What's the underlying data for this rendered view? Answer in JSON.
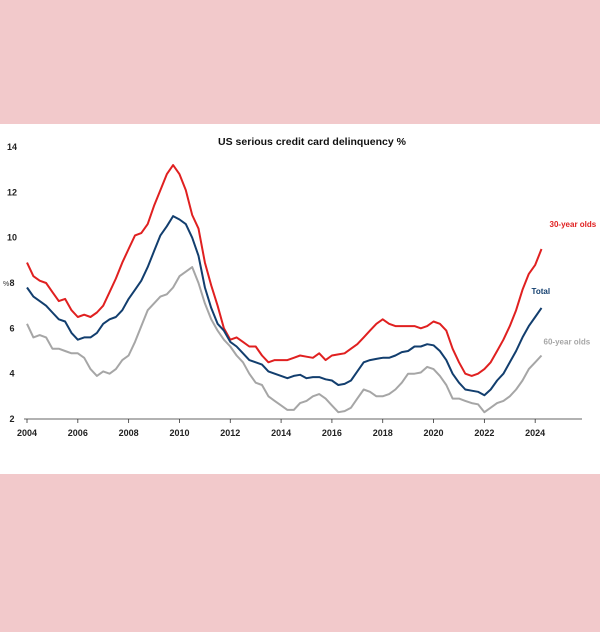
{
  "chart_data": {
    "type": "line",
    "title": "US serious credit card delinquency %",
    "ylabel": "%",
    "xlabel": "",
    "xlim": [
      2004,
      2026
    ],
    "ylim": [
      2,
      14
    ],
    "x_ticks": [
      2004,
      2006,
      2008,
      2010,
      2012,
      2014,
      2016,
      2018,
      2020,
      2022,
      2024
    ],
    "y_ticks": [
      2,
      4,
      6,
      8,
      10,
      12,
      14
    ],
    "grid": false,
    "legend": "direct labels at line ends",
    "series": [
      {
        "name": "30-year olds",
        "color": "#e02020",
        "points": [
          [
            2004.0,
            8.9
          ],
          [
            2004.25,
            8.3
          ],
          [
            2004.5,
            8.1
          ],
          [
            2004.75,
            8.0
          ],
          [
            2005.0,
            7.6
          ],
          [
            2005.25,
            7.2
          ],
          [
            2005.5,
            7.3
          ],
          [
            2005.75,
            6.8
          ],
          [
            2006.0,
            6.5
          ],
          [
            2006.25,
            6.6
          ],
          [
            2006.5,
            6.5
          ],
          [
            2006.75,
            6.7
          ],
          [
            2007.0,
            7.0
          ],
          [
            2007.25,
            7.6
          ],
          [
            2007.5,
            8.2
          ],
          [
            2007.75,
            8.9
          ],
          [
            2008.0,
            9.5
          ],
          [
            2008.25,
            10.1
          ],
          [
            2008.5,
            10.2
          ],
          [
            2008.75,
            10.6
          ],
          [
            2009.0,
            11.4
          ],
          [
            2009.25,
            12.1
          ],
          [
            2009.5,
            12.8
          ],
          [
            2009.75,
            13.2
          ],
          [
            2010.0,
            12.8
          ],
          [
            2010.25,
            12.1
          ],
          [
            2010.5,
            11.0
          ],
          [
            2010.75,
            10.4
          ],
          [
            2011.0,
            8.9
          ],
          [
            2011.25,
            7.9
          ],
          [
            2011.5,
            7.0
          ],
          [
            2011.75,
            6.0
          ],
          [
            2012.0,
            5.5
          ],
          [
            2012.25,
            5.6
          ],
          [
            2012.5,
            5.4
          ],
          [
            2012.75,
            5.2
          ],
          [
            2013.0,
            5.2
          ],
          [
            2013.25,
            4.8
          ],
          [
            2013.5,
            4.5
          ],
          [
            2013.75,
            4.6
          ],
          [
            2014.0,
            4.6
          ],
          [
            2014.25,
            4.6
          ],
          [
            2014.5,
            4.7
          ],
          [
            2014.75,
            4.8
          ],
          [
            2015.0,
            4.75
          ],
          [
            2015.25,
            4.7
          ],
          [
            2015.5,
            4.9
          ],
          [
            2015.75,
            4.6
          ],
          [
            2016.0,
            4.8
          ],
          [
            2016.25,
            4.85
          ],
          [
            2016.5,
            4.9
          ],
          [
            2016.75,
            5.1
          ],
          [
            2017.0,
            5.3
          ],
          [
            2017.25,
            5.6
          ],
          [
            2017.5,
            5.9
          ],
          [
            2017.75,
            6.2
          ],
          [
            2018.0,
            6.4
          ],
          [
            2018.25,
            6.2
          ],
          [
            2018.5,
            6.1
          ],
          [
            2018.75,
            6.1
          ],
          [
            2019.0,
            6.1
          ],
          [
            2019.25,
            6.1
          ],
          [
            2019.5,
            6.0
          ],
          [
            2019.75,
            6.1
          ],
          [
            2020.0,
            6.3
          ],
          [
            2020.25,
            6.2
          ],
          [
            2020.5,
            5.9
          ],
          [
            2020.75,
            5.1
          ],
          [
            2021.0,
            4.5
          ],
          [
            2021.25,
            4.0
          ],
          [
            2021.5,
            3.9
          ],
          [
            2021.75,
            4.0
          ],
          [
            2022.0,
            4.2
          ],
          [
            2022.25,
            4.5
          ],
          [
            2022.5,
            5.0
          ],
          [
            2022.75,
            5.5
          ],
          [
            2023.0,
            6.1
          ],
          [
            2023.25,
            6.8
          ],
          [
            2023.5,
            7.7
          ],
          [
            2023.75,
            8.4
          ],
          [
            2024.0,
            8.8
          ],
          [
            2024.25,
            9.5
          ]
        ],
        "end_label": "30-year olds"
      },
      {
        "name": "Total",
        "color": "#123e6e",
        "points": [
          [
            2004.0,
            7.8
          ],
          [
            2004.25,
            7.4
          ],
          [
            2004.5,
            7.2
          ],
          [
            2004.75,
            7.0
          ],
          [
            2005.0,
            6.7
          ],
          [
            2005.25,
            6.4
          ],
          [
            2005.5,
            6.3
          ],
          [
            2005.75,
            5.8
          ],
          [
            2006.0,
            5.5
          ],
          [
            2006.25,
            5.6
          ],
          [
            2006.5,
            5.6
          ],
          [
            2006.75,
            5.8
          ],
          [
            2007.0,
            6.2
          ],
          [
            2007.25,
            6.4
          ],
          [
            2007.5,
            6.5
          ],
          [
            2007.75,
            6.8
          ],
          [
            2008.0,
            7.3
          ],
          [
            2008.25,
            7.7
          ],
          [
            2008.5,
            8.1
          ],
          [
            2008.75,
            8.7
          ],
          [
            2009.0,
            9.4
          ],
          [
            2009.25,
            10.1
          ],
          [
            2009.5,
            10.5
          ],
          [
            2009.75,
            10.95
          ],
          [
            2010.0,
            10.8
          ],
          [
            2010.25,
            10.6
          ],
          [
            2010.5,
            10.0
          ],
          [
            2010.75,
            9.2
          ],
          [
            2011.0,
            7.8
          ],
          [
            2011.25,
            6.9
          ],
          [
            2011.5,
            6.2
          ],
          [
            2011.75,
            5.9
          ],
          [
            2012.0,
            5.4
          ],
          [
            2012.25,
            5.2
          ],
          [
            2012.5,
            4.9
          ],
          [
            2012.75,
            4.6
          ],
          [
            2013.0,
            4.5
          ],
          [
            2013.25,
            4.4
          ],
          [
            2013.5,
            4.1
          ],
          [
            2013.75,
            4.0
          ],
          [
            2014.0,
            3.9
          ],
          [
            2014.25,
            3.8
          ],
          [
            2014.5,
            3.9
          ],
          [
            2014.75,
            3.95
          ],
          [
            2015.0,
            3.8
          ],
          [
            2015.25,
            3.85
          ],
          [
            2015.5,
            3.85
          ],
          [
            2015.75,
            3.75
          ],
          [
            2016.0,
            3.7
          ],
          [
            2016.25,
            3.5
          ],
          [
            2016.5,
            3.55
          ],
          [
            2016.75,
            3.7
          ],
          [
            2017.0,
            4.1
          ],
          [
            2017.25,
            4.5
          ],
          [
            2017.5,
            4.6
          ],
          [
            2017.75,
            4.65
          ],
          [
            2018.0,
            4.7
          ],
          [
            2018.25,
            4.7
          ],
          [
            2018.5,
            4.8
          ],
          [
            2018.75,
            4.95
          ],
          [
            2019.0,
            5.0
          ],
          [
            2019.25,
            5.2
          ],
          [
            2019.5,
            5.2
          ],
          [
            2019.75,
            5.3
          ],
          [
            2020.0,
            5.25
          ],
          [
            2020.25,
            5.0
          ],
          [
            2020.5,
            4.6
          ],
          [
            2020.75,
            4.0
          ],
          [
            2021.0,
            3.6
          ],
          [
            2021.25,
            3.3
          ],
          [
            2021.5,
            3.25
          ],
          [
            2021.75,
            3.2
          ],
          [
            2022.0,
            3.05
          ],
          [
            2022.25,
            3.3
          ],
          [
            2022.5,
            3.7
          ],
          [
            2022.75,
            4.0
          ],
          [
            2023.0,
            4.5
          ],
          [
            2023.25,
            5.0
          ],
          [
            2023.5,
            5.6
          ],
          [
            2023.75,
            6.1
          ],
          [
            2024.0,
            6.5
          ],
          [
            2024.25,
            6.9
          ]
        ],
        "end_label": "Total"
      },
      {
        "name": "60-year olds",
        "color": "#a6a6a6",
        "points": [
          [
            2004.0,
            6.2
          ],
          [
            2004.25,
            5.6
          ],
          [
            2004.5,
            5.7
          ],
          [
            2004.75,
            5.6
          ],
          [
            2005.0,
            5.1
          ],
          [
            2005.25,
            5.1
          ],
          [
            2005.5,
            5.0
          ],
          [
            2005.75,
            4.9
          ],
          [
            2006.0,
            4.9
          ],
          [
            2006.25,
            4.7
          ],
          [
            2006.5,
            4.2
          ],
          [
            2006.75,
            3.9
          ],
          [
            2007.0,
            4.1
          ],
          [
            2007.25,
            4.0
          ],
          [
            2007.5,
            4.2
          ],
          [
            2007.75,
            4.6
          ],
          [
            2008.0,
            4.8
          ],
          [
            2008.25,
            5.4
          ],
          [
            2008.5,
            6.1
          ],
          [
            2008.75,
            6.8
          ],
          [
            2009.0,
            7.1
          ],
          [
            2009.25,
            7.4
          ],
          [
            2009.5,
            7.5
          ],
          [
            2009.75,
            7.8
          ],
          [
            2010.0,
            8.3
          ],
          [
            2010.25,
            8.5
          ],
          [
            2010.5,
            8.7
          ],
          [
            2010.75,
            8.0
          ],
          [
            2011.0,
            7.1
          ],
          [
            2011.25,
            6.4
          ],
          [
            2011.5,
            5.9
          ],
          [
            2011.75,
            5.5
          ],
          [
            2012.0,
            5.2
          ],
          [
            2012.25,
            4.8
          ],
          [
            2012.5,
            4.5
          ],
          [
            2012.75,
            4.0
          ],
          [
            2013.0,
            3.6
          ],
          [
            2013.25,
            3.5
          ],
          [
            2013.5,
            3.0
          ],
          [
            2013.75,
            2.8
          ],
          [
            2014.0,
            2.6
          ],
          [
            2014.25,
            2.4
          ],
          [
            2014.5,
            2.4
          ],
          [
            2014.75,
            2.7
          ],
          [
            2015.0,
            2.8
          ],
          [
            2015.25,
            3.0
          ],
          [
            2015.5,
            3.1
          ],
          [
            2015.75,
            2.9
          ],
          [
            2016.0,
            2.6
          ],
          [
            2016.25,
            2.3
          ],
          [
            2016.5,
            2.35
          ],
          [
            2016.75,
            2.5
          ],
          [
            2017.0,
            2.9
          ],
          [
            2017.25,
            3.3
          ],
          [
            2017.5,
            3.2
          ],
          [
            2017.75,
            3.0
          ],
          [
            2018.0,
            3.0
          ],
          [
            2018.25,
            3.1
          ],
          [
            2018.5,
            3.3
          ],
          [
            2018.75,
            3.6
          ],
          [
            2019.0,
            4.0
          ],
          [
            2019.25,
            4.0
          ],
          [
            2019.5,
            4.05
          ],
          [
            2019.75,
            4.3
          ],
          [
            2020.0,
            4.2
          ],
          [
            2020.25,
            3.9
          ],
          [
            2020.5,
            3.5
          ],
          [
            2020.75,
            2.9
          ],
          [
            2021.0,
            2.9
          ],
          [
            2021.25,
            2.8
          ],
          [
            2021.5,
            2.7
          ],
          [
            2021.75,
            2.65
          ],
          [
            2022.0,
            2.3
          ],
          [
            2022.25,
            2.5
          ],
          [
            2022.5,
            2.7
          ],
          [
            2022.75,
            2.8
          ],
          [
            2023.0,
            3.0
          ],
          [
            2023.25,
            3.3
          ],
          [
            2023.5,
            3.7
          ],
          [
            2023.75,
            4.2
          ],
          [
            2024.0,
            4.5
          ],
          [
            2024.25,
            4.8
          ]
        ],
        "end_label": "60-year olds"
      }
    ]
  }
}
